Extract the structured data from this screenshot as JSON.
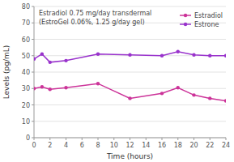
{
  "chart_data": {
    "type": "line",
    "title": "Estradiol 0.75 mg/day transdermal",
    "subtitle": "(EstroGel 0.06%, 1.25 g/day gel)",
    "xlabel": "Time (hours)",
    "ylabel": "Levels (pg/mL)",
    "x": [
      0,
      1,
      2,
      4,
      8,
      12,
      16,
      18,
      20,
      22,
      24
    ],
    "series": [
      {
        "name": "Estradiol",
        "color": "#cc3399",
        "marker": "circle",
        "values": [
          30,
          31,
          29.5,
          30.5,
          33,
          24,
          27,
          30.5,
          26,
          24,
          22.5
        ]
      },
      {
        "name": "Estrone",
        "color": "#9933cc",
        "marker": "circle",
        "values": [
          48,
          51,
          46,
          47,
          51,
          50.5,
          50,
          52.5,
          50.5,
          50,
          50
        ]
      }
    ],
    "xlim": [
      0,
      24
    ],
    "ylim": [
      0,
      80
    ],
    "xticks": [
      0,
      2,
      4,
      6,
      8,
      10,
      12,
      14,
      16,
      18,
      20,
      22,
      24
    ],
    "yticks": [
      0,
      10,
      20,
      30,
      40,
      50,
      60,
      70,
      80
    ],
    "grid": true,
    "legend": "upper right"
  }
}
